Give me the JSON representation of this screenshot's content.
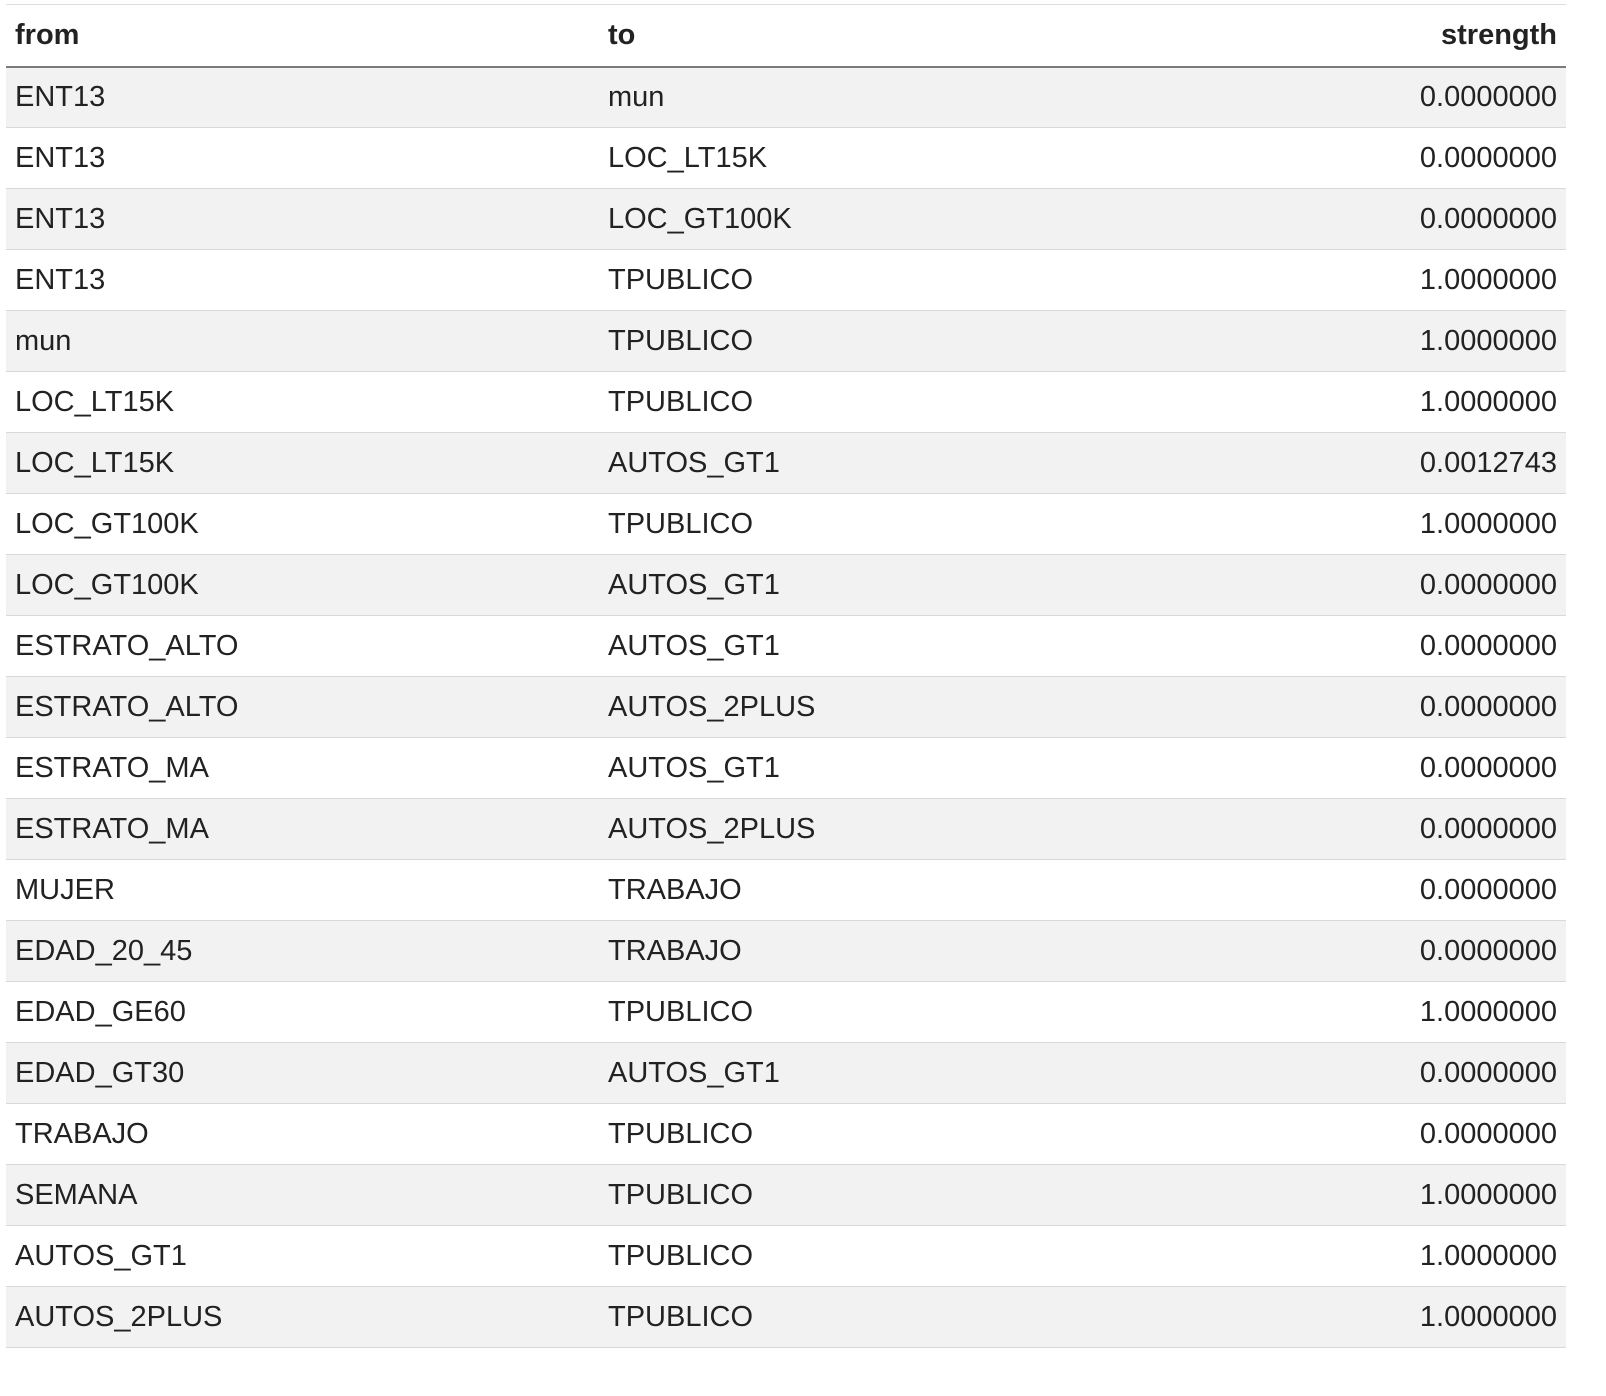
{
  "table": {
    "headers": {
      "from": "from",
      "to": "to",
      "strength": "strength"
    },
    "rows": [
      {
        "from": "ENT13",
        "to": "mun",
        "strength": "0.0000000"
      },
      {
        "from": "ENT13",
        "to": "LOC_LT15K",
        "strength": "0.0000000"
      },
      {
        "from": "ENT13",
        "to": "LOC_GT100K",
        "strength": "0.0000000"
      },
      {
        "from": "ENT13",
        "to": "TPUBLICO",
        "strength": "1.0000000"
      },
      {
        "from": "mun",
        "to": "TPUBLICO",
        "strength": "1.0000000"
      },
      {
        "from": "LOC_LT15K",
        "to": "TPUBLICO",
        "strength": "1.0000000"
      },
      {
        "from": "LOC_LT15K",
        "to": "AUTOS_GT1",
        "strength": "0.0012743"
      },
      {
        "from": "LOC_GT100K",
        "to": "TPUBLICO",
        "strength": "1.0000000"
      },
      {
        "from": "LOC_GT100K",
        "to": "AUTOS_GT1",
        "strength": "0.0000000"
      },
      {
        "from": "ESTRATO_ALTO",
        "to": "AUTOS_GT1",
        "strength": "0.0000000"
      },
      {
        "from": "ESTRATO_ALTO",
        "to": "AUTOS_2PLUS",
        "strength": "0.0000000"
      },
      {
        "from": "ESTRATO_MA",
        "to": "AUTOS_GT1",
        "strength": "0.0000000"
      },
      {
        "from": "ESTRATO_MA",
        "to": "AUTOS_2PLUS",
        "strength": "0.0000000"
      },
      {
        "from": "MUJER",
        "to": "TRABAJO",
        "strength": "0.0000000"
      },
      {
        "from": "EDAD_20_45",
        "to": "TRABAJO",
        "strength": "0.0000000"
      },
      {
        "from": "EDAD_GE60",
        "to": "TPUBLICO",
        "strength": "1.0000000"
      },
      {
        "from": "EDAD_GT30",
        "to": "AUTOS_GT1",
        "strength": "0.0000000"
      },
      {
        "from": "TRABAJO",
        "to": "TPUBLICO",
        "strength": "0.0000000"
      },
      {
        "from": "SEMANA",
        "to": "TPUBLICO",
        "strength": "1.0000000"
      },
      {
        "from": "AUTOS_GT1",
        "to": "TPUBLICO",
        "strength": "1.0000000"
      },
      {
        "from": "AUTOS_2PLUS",
        "to": "TPUBLICO",
        "strength": "1.0000000"
      }
    ]
  }
}
